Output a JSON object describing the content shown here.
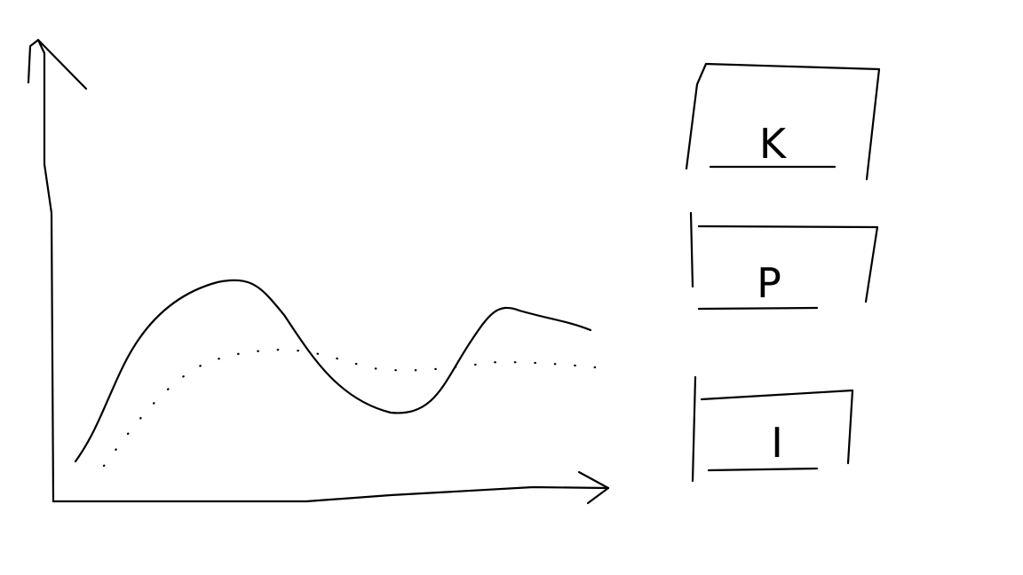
{
  "buttons": [
    {
      "label": "K"
    },
    {
      "label": "P"
    },
    {
      "label": "I"
    }
  ]
}
